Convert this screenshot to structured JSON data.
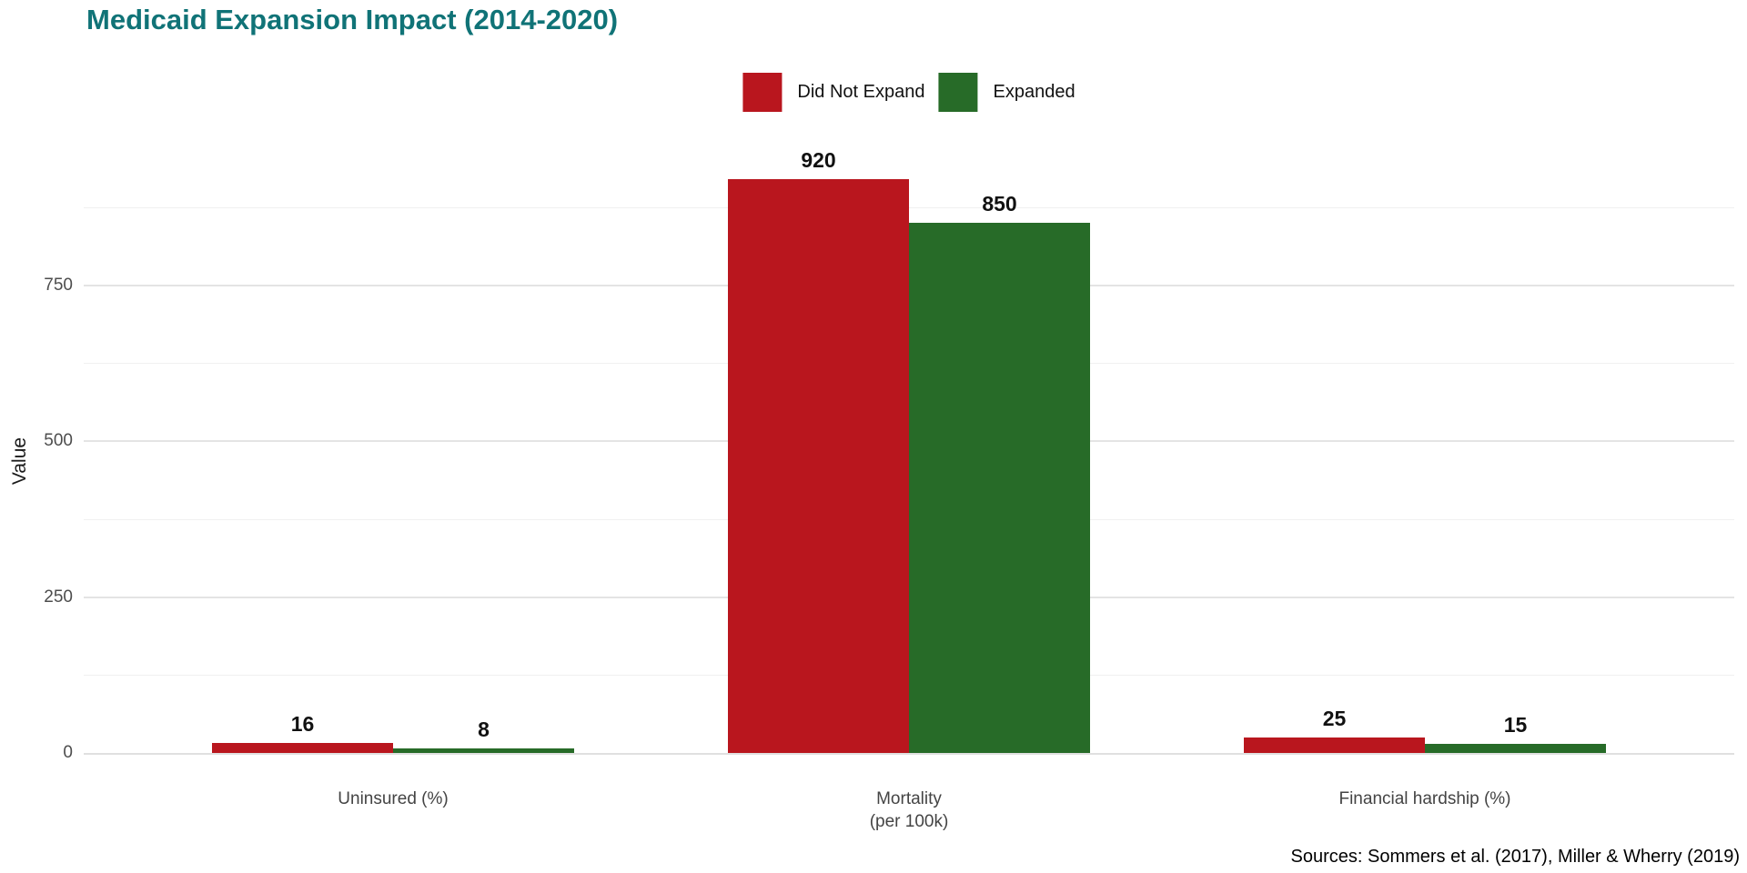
{
  "title": "Medicaid Expansion Impact (2014-2020)",
  "source_note": "Sources: Sommers et al. (2017), Miller & Wherry (2019)",
  "colors": {
    "title_teal": "#107377",
    "did_not_expand_red": "#b9161e",
    "expanded_green": "#276b28",
    "tick_label_gray": "#4d4d4d",
    "category_label_gray": "#444444"
  },
  "chart_data": {
    "type": "bar",
    "title": "Medicaid Expansion Impact (2014-2020)",
    "categories": [
      {
        "label": "Uninsured (%)",
        "lines": [
          "Uninsured (%)"
        ]
      },
      {
        "label": "Mortality (per 100k)",
        "lines": [
          "Mortality",
          "(per 100k)"
        ]
      },
      {
        "label": "Financial hardship (%)",
        "lines": [
          "Financial hardship (%)"
        ]
      }
    ],
    "series": [
      {
        "name": "Did Not Expand",
        "color": "#b9161e",
        "values": [
          16,
          920,
          25
        ]
      },
      {
        "name": "Expanded",
        "color": "#276b28",
        "values": [
          8,
          850,
          15
        ]
      }
    ],
    "xlabel": "",
    "ylabel": "Value",
    "ylim": [
      0,
      966
    ],
    "yticks": [
      0,
      250,
      500,
      750
    ],
    "minor_gridlines": [
      125,
      375,
      625,
      875
    ],
    "grid": true,
    "legend_position": "top-center",
    "value_labels_shown": true,
    "annotation": "Sources: Sommers et al. (2017), Miller & Wherry (2019)"
  }
}
